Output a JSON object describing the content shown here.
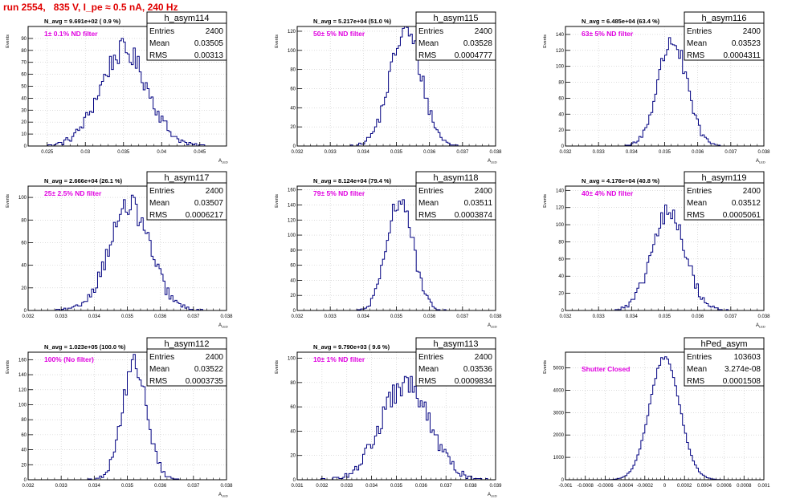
{
  "page_title": "run 2554,   835 V, I_pe ≈ 0.5 nA, 240 Hz",
  "colors": {
    "title": "#e00000",
    "histogram": "#000080",
    "annotation": "#e000e0",
    "grid": "#c8c8c8"
  },
  "chart_data": [
    {
      "type": "bar",
      "name": "h_asym114",
      "stats": [
        [
          "Entries",
          "2400"
        ],
        [
          "Mean",
          "0.03505"
        ],
        [
          "RMS",
          "0.00313"
        ]
      ],
      "navg": "N_avg = 9.691e+02 ( 0.9 %)",
      "filter": "1± 0.1% ND filter",
      "ylabel": "Events",
      "xlabel": "A",
      "xlim": [
        0.0225,
        0.0485
      ],
      "ylim": [
        0,
        100
      ],
      "xticks": [
        0.025,
        0.03,
        0.035,
        0.04,
        0.045
      ],
      "xtick_labels": [
        "0.025",
        "0.03",
        "0.035",
        "0.04",
        "0.045"
      ],
      "yticks": [
        0,
        10,
        20,
        30,
        40,
        50,
        60,
        70,
        80,
        90
      ],
      "ytick_labels": [
        "0",
        "10",
        "20",
        "30",
        "40",
        "50",
        "60",
        "70",
        "80",
        "90"
      ],
      "mean": 0.03505,
      "rms": 0.00313,
      "entries": 2400,
      "nbins": 100
    },
    {
      "type": "bar",
      "name": "h_asym115",
      "stats": [
        [
          "Entries",
          "2400"
        ],
        [
          "Mean",
          "0.03528"
        ],
        [
          "RMS",
          "0.0004777"
        ]
      ],
      "navg": "N_avg = 5.217e+04 (51.0 %)",
      "filter": "50± 5% ND filter",
      "ylabel": "Events",
      "xlabel": "A",
      "xlim": [
        0.032,
        0.038
      ],
      "ylim": [
        0,
        125
      ],
      "xticks": [
        0.032,
        0.033,
        0.034,
        0.035,
        0.036,
        0.037,
        0.038
      ],
      "xtick_labels": [
        "0.032",
        "0.033",
        "0.034",
        "0.035",
        "0.036",
        "0.037",
        "0.038"
      ],
      "yticks": [
        0,
        20,
        40,
        60,
        80,
        100,
        120
      ],
      "ytick_labels": [
        "0",
        "20",
        "40",
        "60",
        "80",
        "100",
        "120"
      ],
      "mean": 0.03528,
      "rms": 0.0004777,
      "entries": 2400,
      "nbins": 100
    },
    {
      "type": "bar",
      "name": "h_asym116",
      "stats": [
        [
          "Entries",
          "2400"
        ],
        [
          "Mean",
          "0.03523"
        ],
        [
          "RMS",
          "0.0004311"
        ]
      ],
      "navg": "N_avg = 6.485e+04 (63.4 %)",
      "filter": "63± 5% ND filter",
      "ylabel": "Events",
      "xlabel": "A",
      "xlim": [
        0.032,
        0.038
      ],
      "ylim": [
        0,
        150
      ],
      "xticks": [
        0.032,
        0.033,
        0.034,
        0.035,
        0.036,
        0.037,
        0.038
      ],
      "xtick_labels": [
        "0.032",
        "0.033",
        "0.034",
        "0.035",
        "0.036",
        "0.037",
        "0.038"
      ],
      "yticks": [
        0,
        20,
        40,
        60,
        80,
        100,
        120,
        140
      ],
      "ytick_labels": [
        "0",
        "20",
        "40",
        "60",
        "80",
        "100",
        "120",
        "140"
      ],
      "mean": 0.03523,
      "rms": 0.0004311,
      "entries": 2400,
      "nbins": 100
    },
    {
      "type": "bar",
      "name": "h_asym117",
      "stats": [
        [
          "Entries",
          "2400"
        ],
        [
          "Mean",
          "0.03507"
        ],
        [
          "RMS",
          "0.0006217"
        ]
      ],
      "navg": "N_avg = 2.666e+04 (26.1 %)",
      "filter": "25± 2.5% ND filter",
      "ylabel": "Events",
      "xlabel": "A",
      "xlim": [
        0.032,
        0.038
      ],
      "ylim": [
        0,
        110
      ],
      "xticks": [
        0.032,
        0.033,
        0.034,
        0.035,
        0.036,
        0.037,
        0.038
      ],
      "xtick_labels": [
        "0.032",
        "0.033",
        "0.034",
        "0.035",
        "0.036",
        "0.037",
        "0.038"
      ],
      "yticks": [
        0,
        20,
        40,
        60,
        80,
        100
      ],
      "ytick_labels": [
        "0",
        "20",
        "40",
        "60",
        "80",
        "100"
      ],
      "mean": 0.03507,
      "rms": 0.0006217,
      "entries": 2400,
      "nbins": 100
    },
    {
      "type": "bar",
      "name": "h_asym118",
      "stats": [
        [
          "Entries",
          "2400"
        ],
        [
          "Mean",
          "0.03511"
        ],
        [
          "RMS",
          "0.0003874"
        ]
      ],
      "navg": "N_avg = 8.124e+04 (79.4 %)",
      "filter": "79± 5% ND filter",
      "ylabel": "Events",
      "xlabel": "A",
      "xlim": [
        0.032,
        0.038
      ],
      "ylim": [
        0,
        165
      ],
      "xticks": [
        0.032,
        0.033,
        0.034,
        0.035,
        0.036,
        0.037,
        0.038
      ],
      "xtick_labels": [
        "0.032",
        "0.033",
        "0.034",
        "0.035",
        "0.036",
        "0.037",
        "0.038"
      ],
      "yticks": [
        0,
        20,
        40,
        60,
        80,
        100,
        120,
        140,
        160
      ],
      "ytick_labels": [
        "0",
        "20",
        "40",
        "60",
        "80",
        "100",
        "120",
        "140",
        "160"
      ],
      "mean": 0.03511,
      "rms": 0.0003874,
      "entries": 2400,
      "nbins": 100
    },
    {
      "type": "bar",
      "name": "h_asym119",
      "stats": [
        [
          "Entries",
          "2400"
        ],
        [
          "Mean",
          "0.03512"
        ],
        [
          "RMS",
          "0.0005061"
        ]
      ],
      "navg": "N_avg = 4.176e+04 (40.8 %)",
      "filter": "40± 4% ND filter",
      "ylabel": "Events",
      "xlabel": "A",
      "xlim": [
        0.032,
        0.038
      ],
      "ylim": [
        0,
        145
      ],
      "xticks": [
        0.032,
        0.033,
        0.034,
        0.035,
        0.036,
        0.037,
        0.038
      ],
      "xtick_labels": [
        "0.032",
        "0.033",
        "0.034",
        "0.035",
        "0.036",
        "0.037",
        "0.038"
      ],
      "yticks": [
        0,
        20,
        40,
        60,
        80,
        100,
        120,
        140
      ],
      "ytick_labels": [
        "0",
        "20",
        "40",
        "60",
        "80",
        "100",
        "120",
        "140"
      ],
      "mean": 0.03512,
      "rms": 0.0005061,
      "entries": 2400,
      "nbins": 100
    },
    {
      "type": "bar",
      "name": "h_asym112",
      "stats": [
        [
          "Entries",
          "2400"
        ],
        [
          "Mean",
          "0.03522"
        ],
        [
          "RMS",
          "0.0003735"
        ]
      ],
      "navg": "N_avg = 1.023e+05 (100.0 %)",
      "filter": "100% (No filter)",
      "ylabel": "Events",
      "xlabel": "A",
      "xlim": [
        0.032,
        0.038
      ],
      "ylim": [
        0,
        170
      ],
      "xticks": [
        0.032,
        0.033,
        0.034,
        0.035,
        0.036,
        0.037,
        0.038
      ],
      "xtick_labels": [
        "0.032",
        "0.033",
        "0.034",
        "0.035",
        "0.036",
        "0.037",
        "0.038"
      ],
      "yticks": [
        0,
        20,
        40,
        60,
        80,
        100,
        120,
        140,
        160
      ],
      "ytick_labels": [
        "0",
        "20",
        "40",
        "60",
        "80",
        "100",
        "120",
        "140",
        "160"
      ],
      "mean": 0.03522,
      "rms": 0.0003735,
      "entries": 2400,
      "nbins": 100
    },
    {
      "type": "bar",
      "name": "h_asym113",
      "stats": [
        [
          "Entries",
          "2400"
        ],
        [
          "Mean",
          "0.03536"
        ],
        [
          "RMS",
          "0.0009834"
        ]
      ],
      "navg": "N_avg = 9.790e+03 ( 9.6 %)",
      "filter": "10± 1% ND filter",
      "ylabel": "Events",
      "xlabel": "A",
      "xlim": [
        0.031,
        0.039
      ],
      "ylim": [
        0,
        105
      ],
      "xticks": [
        0.031,
        0.032,
        0.033,
        0.034,
        0.035,
        0.036,
        0.037,
        0.038,
        0.039
      ],
      "xtick_labels": [
        "0.031",
        "0.032",
        "0.033",
        "0.034",
        "0.035",
        "0.036",
        "0.037",
        "0.038",
        "0.039"
      ],
      "yticks": [
        0,
        20,
        40,
        60,
        80,
        100
      ],
      "ytick_labels": [
        "0",
        "20",
        "40",
        "60",
        "80",
        "100"
      ],
      "mean": 0.03536,
      "rms": 0.0009834,
      "entries": 2400,
      "nbins": 100
    },
    {
      "type": "bar",
      "name": "hPed_asym",
      "stats": [
        [
          "Entries",
          "103603"
        ],
        [
          "Mean",
          "3.274e-08"
        ],
        [
          "RMS",
          "0.0001508"
        ]
      ],
      "navg": "",
      "filter": "Shutter Closed",
      "ylabel": "Events",
      "xlabel": "",
      "xlim": [
        -0.001,
        0.001
      ],
      "ylim": [
        0,
        5700
      ],
      "xticks": [
        -0.001,
        -0.0008,
        -0.0006,
        -0.0004,
        -0.0002,
        0,
        0.0002,
        0.0004,
        0.0006,
        0.0008,
        0.001
      ],
      "xtick_labels": [
        "-0.001",
        "-0.0008",
        "-0.0006",
        "-0.0004",
        "-0.0002",
        "0",
        "0.0002",
        "0.0004",
        "0.0006",
        "0.0008",
        "0.001"
      ],
      "yticks": [
        0,
        1000,
        2000,
        3000,
        4000,
        5000
      ],
      "ytick_labels": [
        "0",
        "1000",
        "2000",
        "3000",
        "4000",
        "5000"
      ],
      "mean": 0.0,
      "rms": 0.0001508,
      "entries": 103603,
      "nbins": 100
    }
  ]
}
